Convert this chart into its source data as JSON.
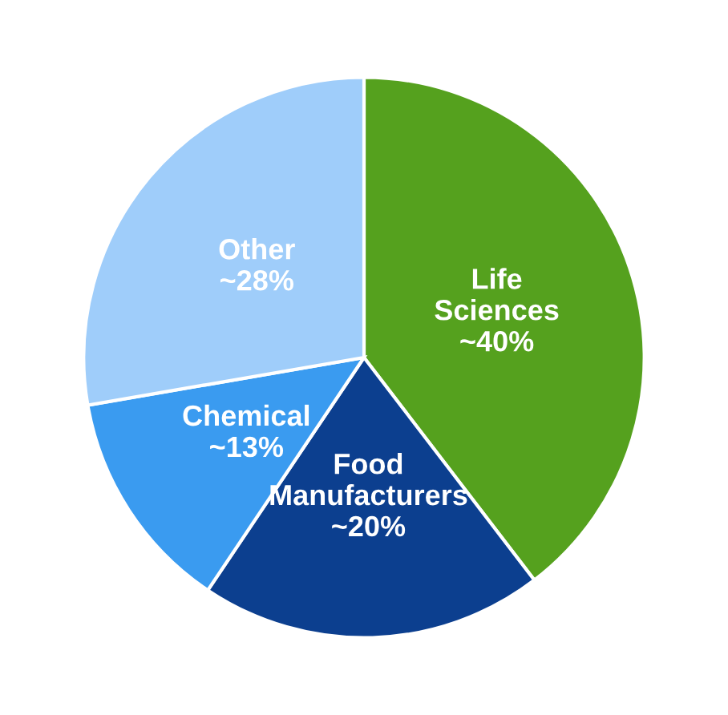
{
  "chart_data": {
    "type": "pie",
    "categories": [
      "Life Sciences",
      "Food Manufacturers",
      "Chemical",
      "Other"
    ],
    "values": [
      40,
      20,
      13,
      28
    ],
    "value_labels": [
      "~40%",
      "~20%",
      "~13%",
      "~28%"
    ],
    "colors": [
      "#55a11e",
      "#0c3f8f",
      "#3a9bf0",
      "#9fcdfa"
    ]
  }
}
